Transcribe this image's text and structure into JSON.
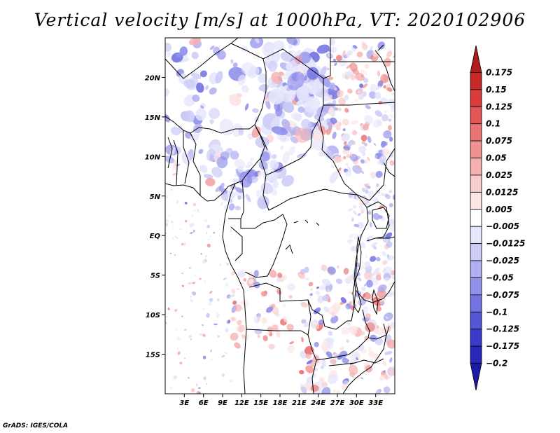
{
  "title": "Vertical velocity [m/s] at 1000hPa, VT: 2020102906",
  "credit": "GrADS: IGES/COLA",
  "map": {
    "lon_range": [
      0,
      36
    ],
    "lat_range": [
      -20,
      25
    ],
    "lat_ticks": [
      "20N",
      "15N",
      "10N",
      "5N",
      "EQ",
      "5S",
      "10S",
      "15S"
    ],
    "lon_ticks": [
      "3E",
      "6E",
      "9E",
      "12E",
      "15E",
      "18E",
      "21E",
      "24E",
      "27E",
      "30E",
      "33E"
    ]
  },
  "colorbar": {
    "labels": [
      "0.175",
      "0.15",
      "0.125",
      "0.1",
      "0.075",
      "0.05",
      "0.025",
      "0.0125",
      "0.005",
      "−0.005",
      "−0.0125",
      "−0.025",
      "−0.05",
      "−0.075",
      "−0.1",
      "−0.125",
      "−0.175",
      "−0.2"
    ],
    "colors": [
      "#b11b1b",
      "#c62828",
      "#d93b3b",
      "#e35555",
      "#ea7373",
      "#f09191",
      "#f5b0b0",
      "#f9cccc",
      "#fce5e5",
      "#ffffff",
      "#e5e5fc",
      "#ccccf7",
      "#b0b0f0",
      "#9191ea",
      "#7373e2",
      "#5555d8",
      "#3b3bcb",
      "#2828bb",
      "#1b1ba8"
    ]
  }
}
